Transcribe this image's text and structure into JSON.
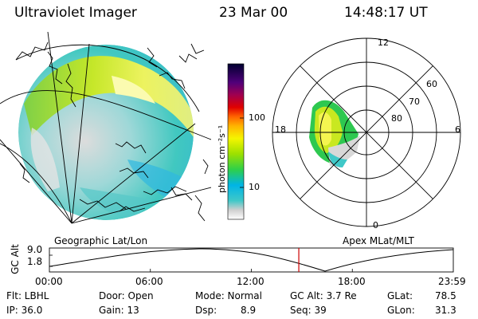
{
  "header": {
    "title": "Ultraviolet Imager",
    "date": "23 Mar 00",
    "time": "14:48:17 UT"
  },
  "geo_panel": {
    "label": "Geographic Lat/Lon"
  },
  "polar_panel": {
    "label": "Apex MLat/MLT",
    "mlt_labels": {
      "top": "12",
      "left": "18",
      "right": "6",
      "bottom": "0"
    },
    "lat_labels": [
      "60",
      "70",
      "80"
    ]
  },
  "colorbar": {
    "unit_label": "photon cm⁻²s⁻¹",
    "ticks": [
      "100",
      "10"
    ],
    "scale": "log",
    "colors": [
      "#ffffff",
      "#dddddd",
      "#40c8c8",
      "#00b4e6",
      "#2ed04a",
      "#aee000",
      "#f5f500",
      "#ffb400",
      "#ff6400",
      "#e00000",
      "#a00050",
      "#50007a",
      "#000030"
    ]
  },
  "timeline": {
    "ylabel": "GC Alt",
    "yticks": [
      "9.0",
      "1.8"
    ],
    "xticks": [
      "00:00",
      "06:00",
      "12:00",
      "18:00",
      "23:59"
    ],
    "marker_fraction": 0.6175,
    "marker_color": "#cc0000"
  },
  "footer": {
    "flt": "Flt: LBHL",
    "ip": "IP: 36.0",
    "door": "Door: Open",
    "gain": "Gain: 13",
    "mode": "Mode: Normal",
    "dsp_label": "Dsp:",
    "dsp_value": "8.9",
    "gcalt": "GC Alt: 3.7 Re",
    "seq": "Seq: 39",
    "glat_label": "GLat:",
    "glat_value": "78.5",
    "glon_label": "GLon:",
    "glon_value": "31.3"
  }
}
